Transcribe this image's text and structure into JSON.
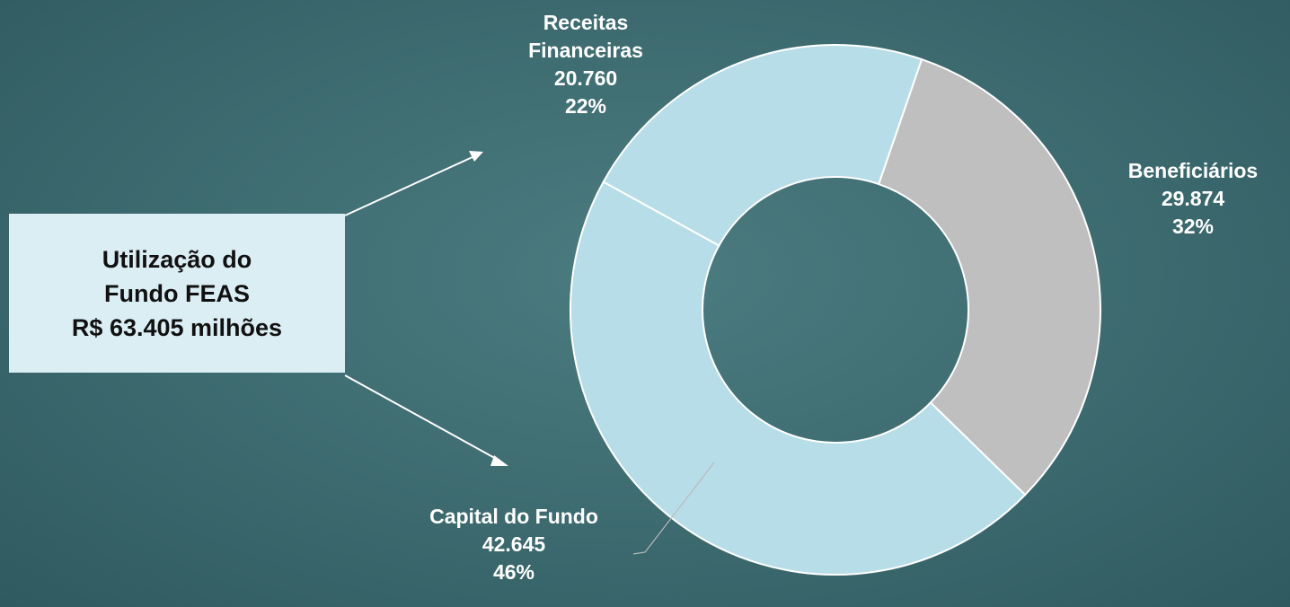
{
  "chart_data": {
    "type": "donut",
    "categories": [
      "Beneficiários",
      "Capital do Fundo",
      "Receitas Financeiras"
    ],
    "values": [
      29874,
      42645,
      20760
    ],
    "value_labels": [
      "29.874",
      "42.645",
      "20.760"
    ],
    "percent_labels": [
      "32%",
      "46%",
      "22%"
    ],
    "colors": [
      "#bfbfbf",
      "#b7dde8",
      "#b7dde8"
    ],
    "annotation": [
      "Utilização do",
      "Fundo FEAS",
      "R$ 63.405 milhões"
    ]
  }
}
